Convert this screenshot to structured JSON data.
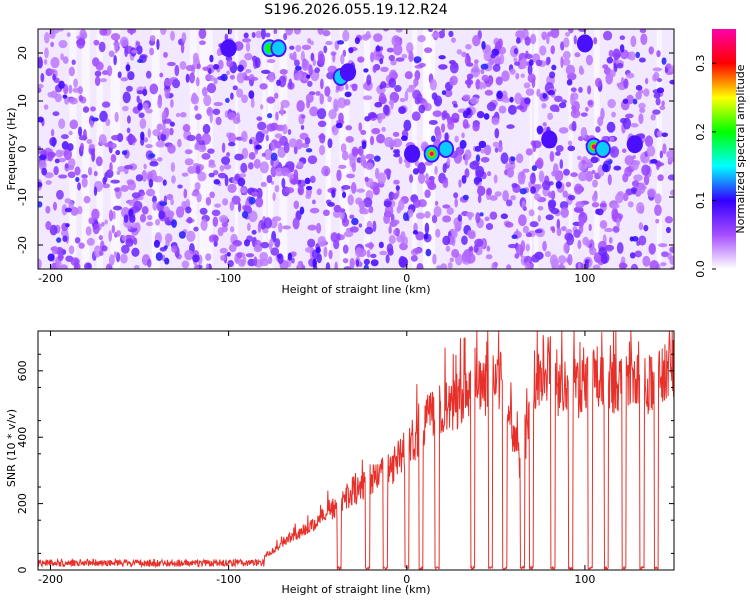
{
  "title": "S196.2026.055.19.12.R24",
  "chart_data": [
    {
      "type": "heatmap",
      "xlabel": "Height of straight line (km)",
      "ylabel": "Frequency (Hz)",
      "xlim": [
        -207,
        150
      ],
      "ylim": [
        -25,
        25
      ],
      "xticks": [
        -200,
        -100,
        0,
        100
      ],
      "yticks": [
        -20,
        -10,
        0,
        10,
        20
      ],
      "colorbar": {
        "label": "Normalized spectral amplitude",
        "range": [
          0,
          0.35
        ],
        "ticks": [
          0.0,
          0.1,
          0.2,
          0.3
        ],
        "tick_labels": [
          "0.0",
          "0.1",
          "0.2",
          "0.3"
        ],
        "colors": [
          "#ffffff",
          "#a64dff",
          "#3300ff",
          "#00ffff",
          "#00ff00",
          "#ffff00",
          "#ff0000",
          "#ff00aa"
        ]
      },
      "hotspots": [
        {
          "x": 14,
          "y": -1,
          "value": 0.35
        },
        {
          "x": 105,
          "y": 0.5,
          "value": 0.35
        },
        {
          "x": 22,
          "y": 0,
          "value": 0.18
        },
        {
          "x": -77,
          "y": 21,
          "value": 0.2
        },
        {
          "x": -72,
          "y": 21,
          "value": 0.15
        },
        {
          "x": -37,
          "y": 15,
          "value": 0.15
        },
        {
          "x": -33,
          "y": 16,
          "value": 0.12
        },
        {
          "x": 3,
          "y": -1,
          "value": 0.12
        },
        {
          "x": 110,
          "y": 0,
          "value": 0.15
        },
        {
          "x": 80,
          "y": 2,
          "value": 0.12
        },
        {
          "x": 128,
          "y": 1,
          "value": 0.12
        },
        {
          "x": -100,
          "y": 21,
          "value": 0.12
        },
        {
          "x": 100,
          "y": 22,
          "value": 0.1
        }
      ]
    },
    {
      "type": "line",
      "xlabel": "Height of straight line (km)",
      "ylabel": "SNR (10 * v/v)",
      "xlim": [
        -207,
        150
      ],
      "ylim": [
        0,
        720
      ],
      "xticks": [
        -200,
        -100,
        0,
        100
      ],
      "yticks": [
        0,
        200,
        400,
        600
      ],
      "color": "#e8302a",
      "series": [
        {
          "x": [
            -207,
            -190,
            -170,
            -150,
            -130,
            -110,
            -100,
            -90,
            -85,
            -80,
            -75,
            -70,
            -65,
            -60,
            -55,
            -50,
            -45,
            -40,
            -35,
            -30,
            -25,
            -20,
            -15,
            -10,
            -5,
            0,
            5,
            10,
            15,
            20,
            25,
            30,
            35,
            40,
            45,
            50,
            55,
            60,
            65,
            70,
            75,
            80,
            85,
            90,
            95,
            100,
            105,
            110,
            115,
            120,
            125,
            130,
            135,
            140,
            145,
            150
          ],
          "y": [
            20,
            20,
            20,
            20,
            20,
            20,
            20,
            25,
            30,
            40,
            60,
            80,
            100,
            110,
            130,
            150,
            170,
            190,
            210,
            230,
            250,
            270,
            290,
            300,
            330,
            370,
            400,
            440,
            460,
            480,
            500,
            520,
            560,
            560,
            560,
            600,
            540,
            400,
            300,
            560,
            600,
            620,
            560,
            560,
            540,
            560,
            600,
            580,
            560,
            560,
            600,
            600,
            560,
            560,
            600,
            600
          ]
        }
      ],
      "drops_x": [
        -38,
        -22,
        -12,
        0,
        8,
        17,
        37,
        47,
        55,
        65,
        70,
        82,
        92,
        103,
        112,
        122,
        132,
        140
      ]
    }
  ]
}
